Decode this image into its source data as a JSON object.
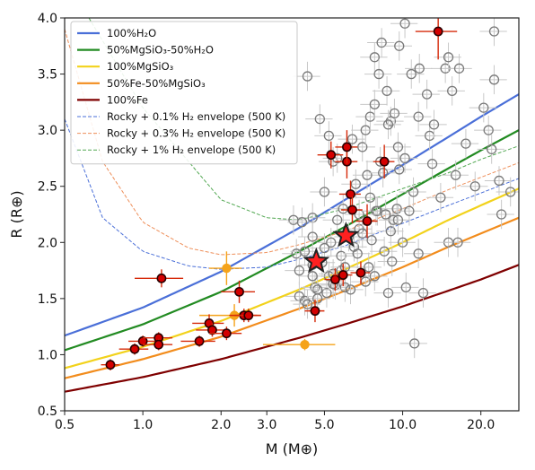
{
  "chart_data": {
    "type": "scatter",
    "xlabel": "M (M⊕)",
    "ylabel": "R (R⊕)",
    "xscale": "log",
    "xlim": [
      0.5,
      28
    ],
    "ylim": [
      0.5,
      4.0
    ],
    "xticks": [
      0.5,
      1.0,
      2.0,
      3.0,
      5.0,
      10.0,
      20.0
    ],
    "xtick_labels": [
      "0.5",
      "1.0",
      "2.0",
      "3.0",
      "5.0",
      "10.0",
      "20.0"
    ],
    "yticks": [
      0.5,
      1.0,
      1.5,
      2.0,
      2.5,
      3.0,
      3.5,
      4.0
    ],
    "ytick_labels": [
      "0.5",
      "1.0",
      "1.5",
      "2.0",
      "2.5",
      "3.0",
      "3.5",
      "4.0"
    ],
    "legend_position": "top-left",
    "grid": false,
    "curves": [
      {
        "name": "100%H₂O",
        "color": "#4a6fd8",
        "style": "solid",
        "points": [
          [
            0.5,
            1.17
          ],
          [
            1,
            1.42
          ],
          [
            2,
            1.74
          ],
          [
            4,
            2.13
          ],
          [
            6,
            2.38
          ],
          [
            10,
            2.69
          ],
          [
            15,
            2.94
          ],
          [
            20,
            3.12
          ],
          [
            28,
            3.32
          ]
        ]
      },
      {
        "name": "50%MgSiO₃-50%H₂O",
        "color": "#228b22",
        "style": "solid",
        "points": [
          [
            0.5,
            1.04
          ],
          [
            1,
            1.27
          ],
          [
            2,
            1.56
          ],
          [
            4,
            1.92
          ],
          [
            6,
            2.14
          ],
          [
            10,
            2.43
          ],
          [
            15,
            2.66
          ],
          [
            20,
            2.82
          ],
          [
            28,
            3.0
          ]
        ]
      },
      {
        "name": "100%MgSiO₃",
        "color": "#f2d21b",
        "style": "solid",
        "points": [
          [
            0.5,
            0.88
          ],
          [
            1,
            1.07
          ],
          [
            2,
            1.3
          ],
          [
            4,
            1.58
          ],
          [
            6,
            1.76
          ],
          [
            10,
            2.0
          ],
          [
            15,
            2.2
          ],
          [
            20,
            2.33
          ],
          [
            28,
            2.48
          ]
        ]
      },
      {
        "name": "50%Fe-50%MgSiO₃",
        "color": "#f28c1c",
        "style": "solid",
        "points": [
          [
            0.5,
            0.79
          ],
          [
            1,
            0.96
          ],
          [
            2,
            1.16
          ],
          [
            4,
            1.41
          ],
          [
            6,
            1.57
          ],
          [
            10,
            1.78
          ],
          [
            15,
            1.96
          ],
          [
            20,
            2.08
          ],
          [
            28,
            2.22
          ]
        ]
      },
      {
        "name": "100%Fe",
        "color": "#7f0000",
        "style": "solid",
        "points": [
          [
            0.5,
            0.67
          ],
          [
            1,
            0.8
          ],
          [
            2,
            0.96
          ],
          [
            4,
            1.15
          ],
          [
            6,
            1.27
          ],
          [
            10,
            1.43
          ],
          [
            15,
            1.57
          ],
          [
            20,
            1.67
          ],
          [
            28,
            1.8
          ]
        ]
      },
      {
        "name": "Rocky + 0.1% H₂ envelope (500 K)",
        "color": "#4a6fd8",
        "style": "dashed",
        "points": [
          [
            0.5,
            3.1
          ],
          [
            0.7,
            2.22
          ],
          [
            1,
            1.92
          ],
          [
            1.5,
            1.79
          ],
          [
            2,
            1.76
          ],
          [
            3,
            1.78
          ],
          [
            4,
            1.85
          ],
          [
            6,
            1.97
          ],
          [
            10,
            2.17
          ],
          [
            15,
            2.33
          ],
          [
            20,
            2.44
          ],
          [
            28,
            2.57
          ]
        ]
      },
      {
        "name": "Rocky + 0.3% H₂ envelope (500 K)",
        "color": "#ee8f5a",
        "style": "dashed",
        "points": [
          [
            0.5,
            3.9
          ],
          [
            0.7,
            2.72
          ],
          [
            1,
            2.18
          ],
          [
            1.5,
            1.95
          ],
          [
            2,
            1.89
          ],
          [
            3,
            1.91
          ],
          [
            4,
            1.98
          ],
          [
            6,
            2.1
          ],
          [
            10,
            2.3
          ],
          [
            15,
            2.47
          ],
          [
            20,
            2.58
          ],
          [
            28,
            2.71
          ]
        ]
      },
      {
        "name": "Rocky + 1% H₂ envelope (500 K)",
        "color": "#52a852",
        "style": "dashed",
        "points": [
          [
            0.62,
            4.0
          ],
          [
            1,
            3.2
          ],
          [
            1.5,
            2.72
          ],
          [
            2,
            2.38
          ],
          [
            3,
            2.22
          ],
          [
            4,
            2.2
          ],
          [
            6,
            2.3
          ],
          [
            10,
            2.48
          ],
          [
            15,
            2.62
          ],
          [
            20,
            2.74
          ],
          [
            28,
            2.86
          ]
        ]
      }
    ],
    "series": [
      {
        "color": "#d40000",
        "marker": "filled-circle",
        "error_color": "#d62a0a",
        "points": [
          [
            0.75,
            0.91,
            0.06,
            0.05
          ],
          [
            0.93,
            1.05,
            0.12,
            0.05
          ],
          [
            1.0,
            1.12,
            0.12,
            0.05
          ],
          [
            1.15,
            1.15,
            0.15,
            0.05
          ],
          [
            1.15,
            1.09,
            0.15,
            0.05
          ],
          [
            1.18,
            1.68,
            0.25,
            0.08
          ],
          [
            1.65,
            1.12,
            0.25,
            0.05
          ],
          [
            1.8,
            1.28,
            0.25,
            0.08
          ],
          [
            1.85,
            1.22,
            0.25,
            0.06
          ],
          [
            2.1,
            1.19,
            0.3,
            0.06
          ],
          [
            2.35,
            1.56,
            0.35,
            0.1
          ],
          [
            2.45,
            1.35,
            0.3,
            0.06
          ],
          [
            2.55,
            1.35,
            0.3,
            0.06
          ],
          [
            4.6,
            1.39,
            0.4,
            0.1
          ],
          [
            5.3,
            2.78,
            0.6,
            0.12
          ],
          [
            5.5,
            1.67,
            0.5,
            0.1
          ],
          [
            5.9,
            1.71,
            0.5,
            0.1
          ],
          [
            6.1,
            2.72,
            0.6,
            0.15
          ],
          [
            6.1,
            2.85,
            0.6,
            0.15
          ],
          [
            6.3,
            2.43,
            0.6,
            0.12
          ],
          [
            6.4,
            2.29,
            0.6,
            0.12
          ],
          [
            6.9,
            1.73,
            0.6,
            0.1
          ],
          [
            7.3,
            2.19,
            0.7,
            0.15
          ],
          [
            8.5,
            2.72,
            0.8,
            0.15
          ],
          [
            13.7,
            3.88,
            2.5,
            0.25
          ]
        ]
      },
      {
        "color": "#f5a31a",
        "marker": "filled-circle",
        "error_color": "#f5a31a",
        "points": [
          [
            2.1,
            1.77,
            0.3,
            0.15
          ],
          [
            2.25,
            1.35,
            0.6,
            0.1
          ],
          [
            4.2,
            1.09,
            1.3,
            0.05
          ]
        ]
      },
      {
        "color": "#7a7a7a",
        "marker": "open-circle-plus",
        "error_color": "#c8c8c8",
        "points": [
          [
            3.8,
            2.2
          ],
          [
            4.0,
            1.52
          ],
          [
            4.2,
            1.48
          ],
          [
            4.3,
            1.45
          ],
          [
            4.5,
            1.8
          ],
          [
            4.6,
            1.6
          ],
          [
            4.7,
            1.5
          ],
          [
            4.9,
            1.82
          ],
          [
            5.0,
            1.95
          ],
          [
            5.1,
            1.55
          ],
          [
            5.2,
            1.7
          ],
          [
            5.3,
            2.0
          ],
          [
            5.4,
            1.72
          ],
          [
            5.5,
            1.62
          ],
          [
            5.6,
            2.2
          ],
          [
            5.8,
            1.88
          ],
          [
            5.9,
            2.3
          ],
          [
            6.0,
            1.6
          ],
          [
            6.2,
            2.05
          ],
          [
            6.5,
            1.96
          ],
          [
            6.6,
            2.52
          ],
          [
            6.8,
            2.12
          ],
          [
            7.0,
            2.08
          ],
          [
            7.2,
            1.65
          ],
          [
            7.3,
            2.6
          ],
          [
            7.5,
            2.4
          ],
          [
            7.6,
            2.02
          ],
          [
            7.8,
            1.7
          ],
          [
            8.0,
            2.28
          ],
          [
            8.2,
            2.72
          ],
          [
            8.5,
            1.92
          ],
          [
            8.8,
            1.55
          ],
          [
            9.0,
            2.1
          ],
          [
            9.2,
            2.2
          ],
          [
            9.5,
            2.3
          ],
          [
            9.7,
            2.65
          ],
          [
            10.0,
            2.0
          ],
          [
            10.3,
            1.6
          ],
          [
            11.0,
            2.45
          ],
          [
            11.5,
            1.9
          ],
          [
            12.0,
            1.55
          ],
          [
            13.0,
            2.7
          ],
          [
            14.0,
            2.4
          ],
          [
            15.0,
            2.0
          ],
          [
            16.0,
            2.6
          ],
          [
            19.0,
            2.5
          ],
          [
            22.0,
            2.83
          ],
          [
            24.0,
            2.25
          ],
          [
            4.8,
            3.1
          ],
          [
            5.2,
            2.95
          ],
          [
            5.4,
            2.72
          ],
          [
            5.6,
            2.75
          ],
          [
            6.4,
            2.92
          ],
          [
            7.0,
            2.85
          ],
          [
            7.2,
            3.0
          ],
          [
            7.5,
            3.12
          ],
          [
            7.8,
            3.23
          ],
          [
            8.4,
            2.62
          ],
          [
            9.0,
            3.08
          ],
          [
            9.3,
            3.15
          ],
          [
            10.2,
            2.75
          ],
          [
            10.8,
            3.5
          ],
          [
            11.6,
            3.55
          ],
          [
            12.7,
            2.95
          ],
          [
            13.2,
            3.05
          ],
          [
            15.5,
            3.35
          ],
          [
            16.3,
            2.0
          ],
          [
            17.5,
            2.88
          ],
          [
            20.5,
            3.2
          ],
          [
            21.4,
            3.0
          ],
          [
            22.5,
            3.45
          ],
          [
            23.5,
            2.55
          ],
          [
            26.0,
            2.45
          ],
          [
            4.3,
            3.48
          ],
          [
            4.5,
            2.22
          ],
          [
            7.8,
            3.65
          ],
          [
            8.3,
            3.78
          ],
          [
            8.7,
            3.35
          ],
          [
            9.7,
            3.75
          ],
          [
            10.2,
            3.95
          ],
          [
            11.5,
            3.12
          ],
          [
            12.4,
            3.32
          ],
          [
            14.6,
            3.55
          ],
          [
            15.0,
            3.65
          ],
          [
            16.5,
            3.55
          ],
          [
            22.5,
            3.88
          ],
          [
            11.1,
            1.1
          ],
          [
            9.6,
            2.85
          ],
          [
            8.1,
            3.5
          ],
          [
            8.8,
            3.05
          ],
          [
            6.8,
            2.25
          ],
          [
            5.0,
            2.45
          ],
          [
            4.7,
            1.58
          ],
          [
            4.5,
            1.7
          ],
          [
            3.9,
            1.9
          ],
          [
            4.0,
            1.75
          ],
          [
            4.2,
            1.92
          ],
          [
            4.5,
            2.05
          ],
          [
            4.1,
            2.18
          ],
          [
            5.4,
            1.63
          ],
          [
            5.8,
            1.75
          ],
          [
            6.0,
            1.78
          ],
          [
            6.3,
            1.58
          ],
          [
            6.7,
            1.9
          ],
          [
            7.4,
            1.78
          ],
          [
            7.9,
            2.28
          ],
          [
            8.6,
            2.25
          ],
          [
            9.1,
            1.83
          ],
          [
            9.6,
            2.2
          ],
          [
            10.6,
            2.28
          ]
        ]
      },
      {
        "color": "#ff2020",
        "marker": "star",
        "points": [
          [
            4.65,
            1.83
          ],
          [
            6.05,
            2.06
          ]
        ]
      }
    ]
  }
}
